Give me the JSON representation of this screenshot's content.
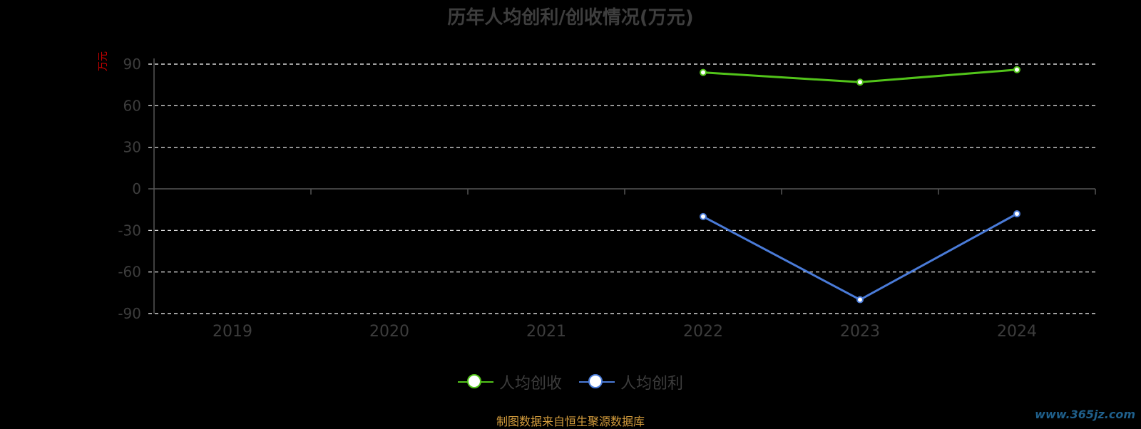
{
  "chart_data": {
    "type": "line",
    "title": "历年人均创利/创收情况(万元)",
    "ylabel": "万元",
    "categories": [
      "2019",
      "2020",
      "2021",
      "2022",
      "2023",
      "2024"
    ],
    "ylim": [
      -90,
      90
    ],
    "yticks": [
      90,
      60,
      30,
      0,
      -30,
      -60,
      -90
    ],
    "grid": true,
    "legend_position": "bottom",
    "series": [
      {
        "name": "人均创收",
        "color": "#52c41a",
        "values": [
          null,
          null,
          null,
          84,
          77,
          86
        ]
      },
      {
        "name": "人均创利",
        "color": "#4a7bd8",
        "values": [
          null,
          null,
          null,
          -20,
          -80,
          -18
        ]
      }
    ]
  },
  "footer": {
    "source": "制图数据来自恒生聚源数据库",
    "watermark": "www.365jz.com"
  },
  "colors": {
    "background": "#000000",
    "grid": "#ffffff",
    "axis": "#555555",
    "tick_text": "#3d3d3d",
    "title": "#3e3e3e",
    "ylabel": "#cc0000",
    "source": "#d29b3c"
  }
}
